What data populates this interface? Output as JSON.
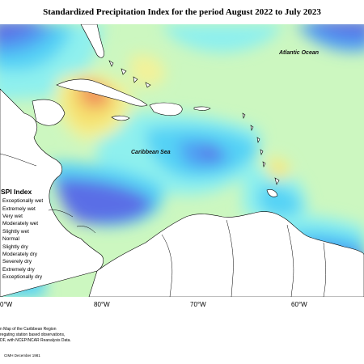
{
  "title": "Standardized Precipitation Index for the period August 2022 to July 2023",
  "labels": {
    "atlantic": "Atlantic Ocean",
    "caribbean": "Caribbean Sea"
  },
  "axis": {
    "lon_ticks": [
      "80°W",
      "70°W",
      "60°W"
    ],
    "left_partial_tick": "0°W"
  },
  "legend": {
    "title": "SPI Index",
    "entries": [
      {
        "label": "Exceptionally wet",
        "color": "#4b3fd0"
      },
      {
        "label": "Extremely wet",
        "color": "#5a6ee6"
      },
      {
        "label": "Very wet",
        "color": "#4f9ff3"
      },
      {
        "label": "Moderately wet",
        "color": "#55d2f5"
      },
      {
        "label": "Slightly wet",
        "color": "#8ef0ee"
      },
      {
        "label": "Normal",
        "color": "#ccf7c0"
      },
      {
        "label": "Slightly dry",
        "color": "#f2f29a"
      },
      {
        "label": "Moderately dry",
        "color": "#f5e270"
      },
      {
        "label": "Severely dry",
        "color": "#f4b464"
      },
      {
        "label": "Extremely dry",
        "color": "#ee8456"
      },
      {
        "label": "Exceptionally dry",
        "color": "#d64d4d"
      }
    ]
  },
  "footer": {
    "line1": "n Map of the Caribbean Region",
    "line2": "regating station based observations,",
    "line3": "DF, with NCEP/NCAR Reanalysis Data.",
    "credit": "CIMH December 1981"
  }
}
